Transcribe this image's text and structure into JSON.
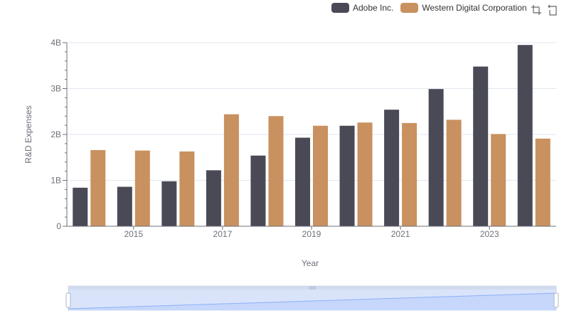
{
  "chart_data": {
    "type": "bar",
    "categories": [
      "2014",
      "2015",
      "2016",
      "2017",
      "2018",
      "2019",
      "2020",
      "2021",
      "2022",
      "2023",
      "2024"
    ],
    "x_tick_labels": [
      "2015",
      "2017",
      "2019",
      "2021",
      "2023"
    ],
    "series": [
      {
        "name": "Adobe Inc.",
        "color": "#4a4a57",
        "values": [
          0.84,
          0.86,
          0.98,
          1.22,
          1.54,
          1.93,
          2.19,
          2.54,
          2.99,
          3.48,
          3.95
        ]
      },
      {
        "name": "Western Digital Corporation",
        "color": "#c8915f",
        "values": [
          1.66,
          1.65,
          1.63,
          2.44,
          2.4,
          2.19,
          2.26,
          2.25,
          2.32,
          2.01,
          1.91
        ]
      }
    ],
    "xlabel": "Year",
    "ylabel": "R&D Expenses",
    "ylim": [
      0,
      4
    ],
    "y_ticks": [
      0,
      1,
      2,
      3,
      4
    ],
    "y_tick_labels": [
      "0",
      "1B",
      "2B",
      "3B",
      "4B"
    ],
    "grid": true,
    "legend_position": "top-right"
  },
  "toolbox": {
    "zoom_icon": "zoom-select-icon",
    "restore_icon": "restore-icon"
  }
}
